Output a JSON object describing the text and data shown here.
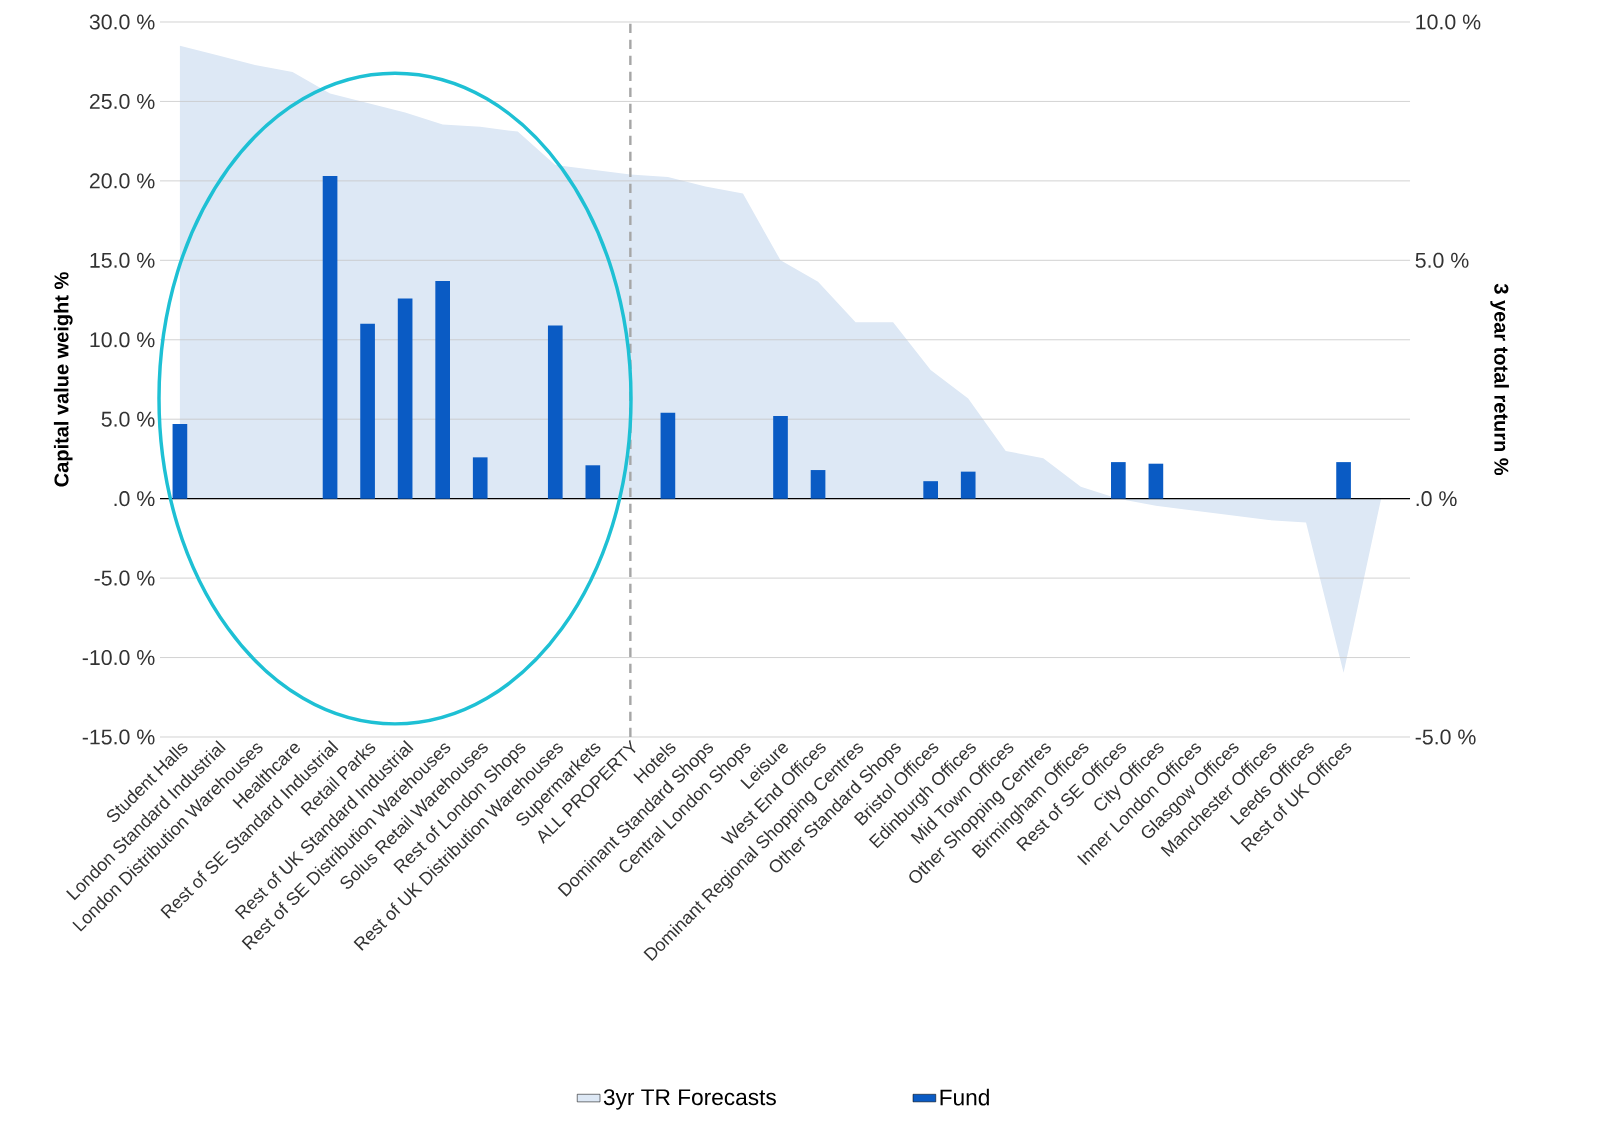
{
  "chart_data": {
    "type": "bar",
    "ylabel": "Capital value weight %",
    "y2label": "3 year total return %",
    "categories": [
      "Student Halls",
      "London Standard Industrial",
      "London Distribution Warehouses",
      "Healthcare",
      "Rest of SE Standard Industrial",
      "Retail Parks",
      "Rest of UK Standard Industrial",
      "Rest of SE Distribution Warehouses",
      "Solus Retail Warehouses",
      "Rest of London Shops",
      "Rest of UK Distribution Warehouses",
      "Supermarkets",
      "ALL PROPERTY",
      "Hotels",
      "Dominant Standard Shops",
      "Central London Shops",
      "Leisure",
      "West End Offices",
      "Dominant Regional Shopping Centres",
      "Other Standard Shops",
      "Bristol Offices",
      "Edinburgh Offices",
      "Mid Town Offices",
      "Other Shopping Centres",
      "Birmingham Offices",
      "Rest of SE Offices",
      "City Offices",
      "Inner London Offices",
      "Glasgow Offices",
      "Manchester Offices",
      "Leeds Offices",
      "Rest of UK Offices",
      null
    ],
    "series": [
      {
        "name": "3yr TR Forecasts",
        "type": "area",
        "axis": "y2",
        "color": "#dde8f5",
        "values": [
          9.5,
          9.3,
          9.1,
          8.95,
          8.5,
          8.3,
          8.1,
          7.85,
          7.8,
          7.7,
          7.0,
          6.9,
          6.8,
          6.75,
          6.55,
          6.4,
          5.0,
          4.55,
          3.7,
          3.7,
          2.7,
          2.1,
          1.0,
          0.85,
          0.25,
          0,
          -0.15,
          -0.25,
          -0.35,
          -0.45,
          -0.5,
          -3.65,
          0
        ]
      },
      {
        "name": "Fund",
        "color": "#0a5bc4",
        "values": [
          4.7,
          0,
          0,
          0,
          20.3,
          11.0,
          12.6,
          13.7,
          2.6,
          0,
          10.9,
          2.1,
          0,
          5.4,
          0,
          0,
          5.2,
          1.8,
          0,
          0,
          1.1,
          1.7,
          0,
          0,
          0,
          2.3,
          2.2,
          0,
          0,
          0,
          0,
          2.3,
          0
        ]
      }
    ],
    "ylim": [
      -15,
      30
    ],
    "yticks": [
      {
        "value": -15,
        "label": "-15.0 %"
      },
      {
        "value": -10,
        "label": "-10.0 %"
      },
      {
        "value": -5,
        "label": "-5.0 %"
      },
      {
        "value": 0,
        "label": ".0 %"
      },
      {
        "value": 5,
        "label": "5.0 %"
      },
      {
        "value": 10,
        "label": "10.0 %"
      },
      {
        "value": 15,
        "label": "15.0 %"
      },
      {
        "value": 20,
        "label": "20.0 %"
      },
      {
        "value": 25,
        "label": "25.0 %"
      },
      {
        "value": 30,
        "label": "30.0 %"
      }
    ],
    "y2lim": [
      -5,
      10
    ],
    "y2ticks": [
      {
        "value": -5,
        "label": "-5.0 %"
      },
      {
        "value": 0,
        "label": ".0 %"
      },
      {
        "value": 5,
        "label": "5.0 %"
      },
      {
        "value": 10,
        "label": "10.0 %"
      }
    ],
    "ref_lines": [
      {
        "axis": "x",
        "value": "ALL PROPERTY",
        "color": "#a6a6a6",
        "line_style": "dashed"
      }
    ],
    "grid": "y",
    "legend": "bottom"
  }
}
